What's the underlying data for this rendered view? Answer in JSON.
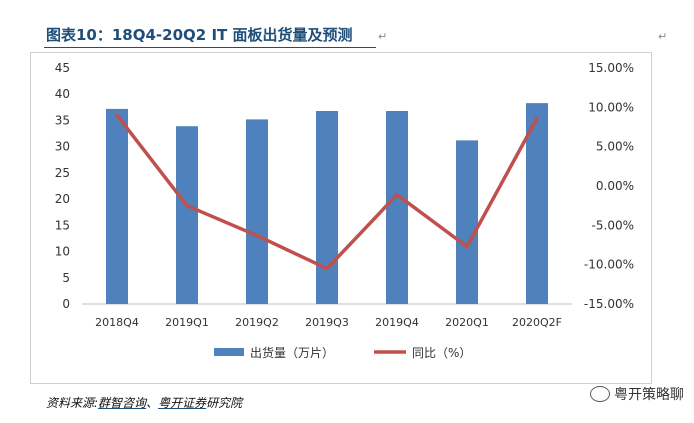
{
  "title": "图表10：18Q4-20Q2 IT  面板出货量及预测",
  "para_mark": "↵",
  "corner_mark": "↵",
  "source": {
    "prefix": "资料来源:",
    "link1": "群智咨询",
    "sep": "、",
    "link2": "粤开证券",
    "suffix": "研究院"
  },
  "watermark": "粤开策略聊",
  "watermark_icon": "wechat-icon",
  "colors": {
    "bar": "#4f81bd",
    "line": "#c0504d",
    "title": "#1f4e79"
  },
  "chart_data": {
    "type": "bar",
    "categories": [
      "2018Q4",
      "2019Q1",
      "2019Q2",
      "2019Q3",
      "2019Q4",
      "2020Q1",
      "2020Q2F"
    ],
    "series": [
      {
        "name": "出货量（万片）",
        "type": "bar",
        "axis": "left",
        "values": [
          37.2,
          33.9,
          35.2,
          36.8,
          36.8,
          31.2,
          38.3
        ]
      },
      {
        "name": "同比（%）",
        "type": "line",
        "axis": "right",
        "values": [
          9.0,
          -2.5,
          -6.3,
          -10.5,
          -1.1,
          -7.7,
          8.6
        ]
      }
    ],
    "y_left": {
      "min": 0,
      "max": 45,
      "step": 5,
      "ticks": [
        "0",
        "5",
        "10",
        "15",
        "20",
        "25",
        "30",
        "35",
        "40",
        "45"
      ]
    },
    "y_right": {
      "min": -15,
      "max": 15,
      "step": 5,
      "ticks": [
        "-15.00%",
        "-10.00%",
        "-5.00%",
        "0.00%",
        "5.00%",
        "10.00%",
        "15.00%"
      ]
    },
    "legend": [
      "出货量（万片）",
      "同比（%）"
    ],
    "legend_position": "bottom"
  }
}
